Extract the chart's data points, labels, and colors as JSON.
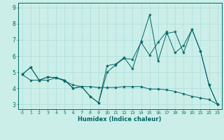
{
  "xlabel": "Humidex (Indice chaleur)",
  "bg_color": "#cceee8",
  "grid_color": "#aadddd",
  "line_color": "#006666",
  "xlim": [
    -0.5,
    23.5
  ],
  "ylim": [
    2.7,
    9.3
  ],
  "yticks": [
    3,
    4,
    5,
    6,
    7,
    8,
    9
  ],
  "xticks": [
    0,
    1,
    2,
    3,
    4,
    5,
    6,
    7,
    8,
    9,
    10,
    11,
    12,
    13,
    14,
    15,
    16,
    17,
    18,
    19,
    20,
    21,
    22,
    23
  ],
  "series": [
    [
      4.85,
      5.3,
      4.5,
      4.7,
      4.65,
      4.5,
      4.0,
      4.1,
      3.5,
      3.1,
      5.4,
      5.5,
      5.9,
      5.2,
      6.9,
      8.55,
      5.7,
      7.4,
      7.5,
      6.2,
      7.65,
      6.3,
      4.2,
      3.0
    ],
    [
      4.85,
      5.3,
      4.5,
      4.7,
      4.65,
      4.5,
      4.0,
      4.1,
      3.5,
      3.1,
      5.0,
      5.45,
      5.85,
      5.8,
      6.85,
      6.05,
      6.85,
      7.5,
      6.2,
      6.65,
      7.65,
      6.3,
      4.2,
      3.0
    ],
    [
      4.85,
      4.5,
      4.5,
      4.5,
      4.65,
      4.45,
      4.2,
      4.1,
      4.1,
      4.05,
      4.05,
      4.05,
      4.1,
      4.1,
      4.1,
      3.95,
      3.95,
      3.9,
      3.8,
      3.65,
      3.5,
      3.4,
      3.3,
      3.0
    ]
  ]
}
